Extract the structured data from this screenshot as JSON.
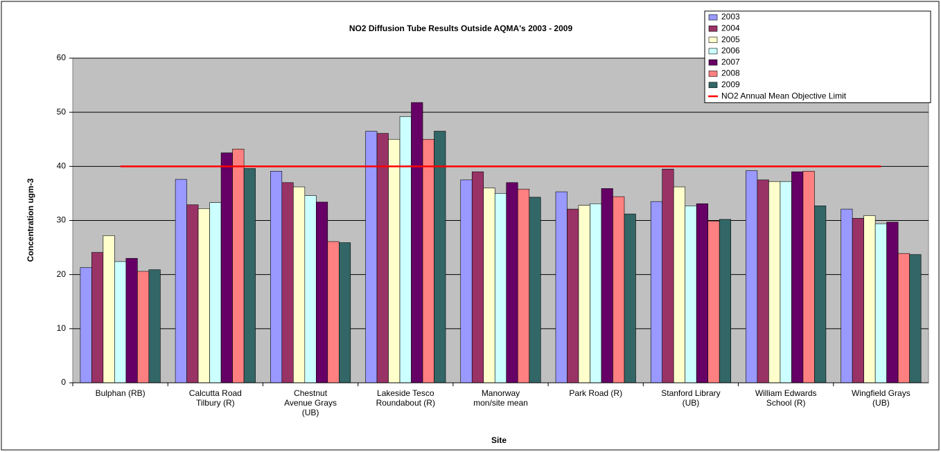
{
  "chart_data": {
    "type": "bar",
    "title": "NO2 Diffusion Tube Results Outside AQMA's 2003 - 2009",
    "x_label": "Site",
    "y_label": "Concentration ugm-3",
    "categories": [
      "Bulphan (RB)",
      "Calcutta Road Tilbury (R)",
      "Chestnut Avenue Grays (UB)",
      "Lakeside Tesco Roundabout (R)",
      "Manorway mon/site mean",
      "Park Road (R)",
      "Stanford Library (UB)",
      "William Edwards School (R)",
      "Wingfield Grays (UB)"
    ],
    "series": [
      {
        "name": "2003",
        "color": "#9999ff",
        "values": [
          21.3,
          37.6,
          39.1,
          46.5,
          37.5,
          35.3,
          33.5,
          39.2,
          32.1
        ]
      },
      {
        "name": "2004",
        "color": "#993366",
        "values": [
          24.1,
          32.9,
          37.0,
          46.1,
          39.0,
          32.1,
          39.5,
          37.5,
          30.4
        ]
      },
      {
        "name": "2005",
        "color": "#ffffcc",
        "values": [
          27.2,
          32.2,
          36.2,
          45.0,
          36.0,
          32.8,
          36.2,
          37.2,
          30.9
        ]
      },
      {
        "name": "2006",
        "color": "#ccffff",
        "values": [
          22.4,
          33.3,
          34.6,
          49.2,
          35.0,
          33.1,
          32.7,
          37.2,
          29.4
        ]
      },
      {
        "name": "2007",
        "color": "#660066",
        "values": [
          23.0,
          42.5,
          33.4,
          51.8,
          37.0,
          35.9,
          33.1,
          39.0,
          29.7
        ]
      },
      {
        "name": "2008",
        "color": "#ff8080",
        "values": [
          20.6,
          43.2,
          26.1,
          45.0,
          35.8,
          34.4,
          29.9,
          39.1,
          23.9
        ]
      },
      {
        "name": "2009",
        "color": "#336666",
        "values": [
          20.9,
          39.6,
          25.9,
          46.5,
          34.3,
          31.2,
          30.2,
          32.7,
          23.7
        ]
      },
      {
        "name": "NO2 Annual Mean Objective Limit",
        "type": "line",
        "color": "#ff0000",
        "values": [
          40,
          40,
          40,
          40,
          40,
          40,
          40,
          40,
          40
        ]
      }
    ],
    "ylim": [
      0,
      60
    ],
    "yticks": [
      0,
      10,
      20,
      30,
      40,
      50,
      60
    ],
    "grid": true,
    "legend": "top-right"
  }
}
